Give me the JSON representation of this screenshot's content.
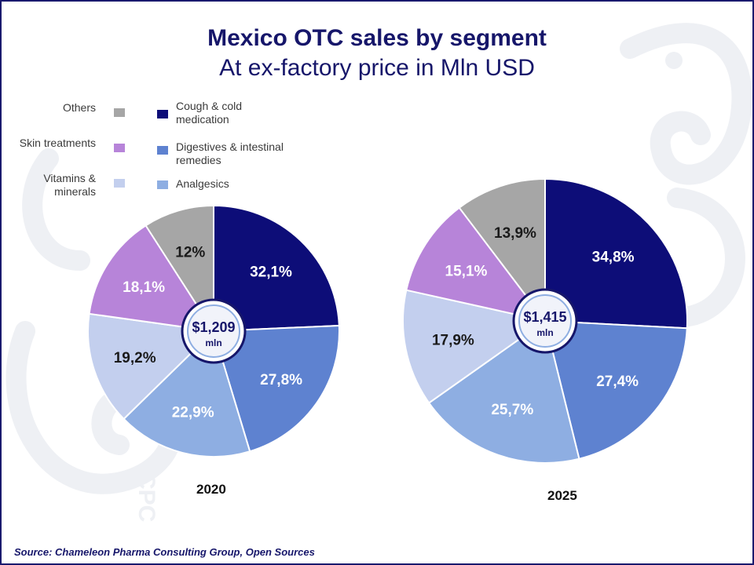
{
  "header": {
    "title": "Mexico OTC sales by segment",
    "subtitle": "At ex-factory price in Mln USD"
  },
  "legend": [
    {
      "label": "Others",
      "color": "#a6a6a6"
    },
    {
      "label": "Skin treatments",
      "color": "#b784d9"
    },
    {
      "label": "Vitamins & minerals",
      "color": "#c3cfee"
    },
    {
      "label": "Cough & cold medication",
      "color": "#0d0d78"
    },
    {
      "label": "Digestives & intestinal remedies",
      "color": "#5e82d0"
    },
    {
      "label": "Analgesics",
      "color": "#8eaee2"
    }
  ],
  "chart_data": [
    {
      "type": "pie",
      "year": "2020",
      "center_value": "$1,209",
      "center_unit": "mln",
      "slices": [
        {
          "segment": "Cough & cold medication",
          "value": 32.1,
          "label": "32,1%"
        },
        {
          "segment": "Digestives & intestinal remedies",
          "value": 27.8,
          "label": "27,8%"
        },
        {
          "segment": "Analgesics",
          "value": 22.9,
          "label": "22,9%"
        },
        {
          "segment": "Vitamins & minerals",
          "value": 19.2,
          "label": "19,2%"
        },
        {
          "segment": "Skin treatments",
          "value": 18.1,
          "label": "18,1%"
        },
        {
          "segment": "Others",
          "value": 12,
          "label": "12%"
        }
      ]
    },
    {
      "type": "pie",
      "year": "2025",
      "center_value": "$1,415",
      "center_unit": "mln",
      "slices": [
        {
          "segment": "Cough & cold medication",
          "value": 34.8,
          "label": "34,8%"
        },
        {
          "segment": "Digestives & intestinal remedies",
          "value": 27.4,
          "label": "27,4%"
        },
        {
          "segment": "Analgesics",
          "value": 25.7,
          "label": "25,7%"
        },
        {
          "segment": "Vitamins & minerals",
          "value": 17.9,
          "label": "17,9%"
        },
        {
          "segment": "Skin treatments",
          "value": 15.1,
          "label": "15,1%"
        },
        {
          "segment": "Others",
          "value": 13.9,
          "label": "13,9%"
        }
      ]
    }
  ],
  "footer": {
    "source": "Source: Chameleon Pharma Consulting Group, Open Sources"
  },
  "watermark": {
    "text": "CPC"
  }
}
